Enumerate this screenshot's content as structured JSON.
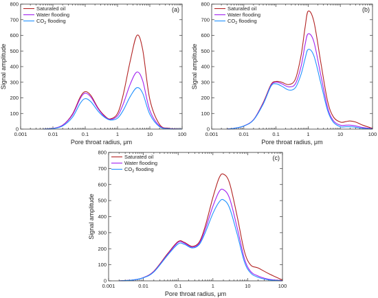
{
  "chart_data": [
    {
      "type": "line",
      "panel_label": "(a)",
      "xlabel": "Pore throat radius, μm",
      "ylabel": "Signal amplitude",
      "xscale": "log",
      "xlim": [
        0.001,
        100
      ],
      "ylim": [
        0,
        800
      ],
      "x_ticks": [
        "0.001",
        "0.01",
        "0.1",
        "1",
        "10",
        "100"
      ],
      "y_ticks": [
        "0",
        "100",
        "200",
        "300",
        "400",
        "500",
        "600",
        "700",
        "800"
      ],
      "legend_position": "top-left",
      "series": [
        {
          "name": "Saturated oil",
          "color": "#b22222",
          "x": [
            0.005,
            0.01,
            0.02,
            0.04,
            0.07,
            0.1,
            0.15,
            0.25,
            0.4,
            0.6,
            1,
            1.5,
            2.5,
            4,
            6,
            10,
            20,
            40,
            100
          ],
          "y": [
            0,
            4,
            25,
            95,
            205,
            240,
            215,
            135,
            85,
            65,
            100,
            220,
            440,
            600,
            510,
            190,
            30,
            5,
            0
          ]
        },
        {
          "name": "Water flooding",
          "color": "#a020f0",
          "x": [
            0.005,
            0.01,
            0.02,
            0.04,
            0.07,
            0.1,
            0.15,
            0.25,
            0.4,
            0.6,
            1,
            1.5,
            2.5,
            4,
            6,
            10,
            20,
            40,
            100
          ],
          "y": [
            0,
            4,
            25,
            90,
            195,
            230,
            205,
            130,
            80,
            62,
            85,
            160,
            290,
            365,
            310,
            120,
            20,
            3,
            0
          ]
        },
        {
          "name": "CO2 flooding",
          "color": "#1e90ff",
          "x": [
            0.005,
            0.01,
            0.02,
            0.04,
            0.07,
            0.1,
            0.15,
            0.25,
            0.4,
            0.6,
            1,
            1.5,
            2.5,
            4,
            6,
            10,
            20,
            40,
            100
          ],
          "y": [
            0,
            3,
            20,
            75,
            165,
            195,
            175,
            115,
            75,
            58,
            70,
            120,
            210,
            265,
            230,
            95,
            15,
            2,
            0
          ]
        }
      ]
    },
    {
      "type": "line",
      "panel_label": "(b)",
      "xlabel": "Pore throat radius, μm",
      "ylabel": "Signal amplitude",
      "xscale": "log",
      "xlim": [
        0.001,
        100
      ],
      "ylim": [
        0,
        800
      ],
      "x_ticks": [
        "0.001",
        "0.01",
        "0.1",
        "1",
        "10",
        "100"
      ],
      "y_ticks": [
        "0",
        "100",
        "200",
        "300",
        "400",
        "500",
        "600",
        "700",
        "800"
      ],
      "legend_position": "top-left",
      "series": [
        {
          "name": "Saturated oil",
          "color": "#b22222",
          "x": [
            0.003,
            0.005,
            0.01,
            0.02,
            0.04,
            0.07,
            0.1,
            0.15,
            0.25,
            0.4,
            0.6,
            0.8,
            1,
            1.5,
            2.5,
            4,
            6,
            10,
            15,
            20,
            30,
            50,
            100
          ],
          "y": [
            0,
            5,
            20,
            60,
            170,
            285,
            305,
            300,
            285,
            320,
            470,
            650,
            755,
            690,
            420,
            180,
            80,
            45,
            48,
            52,
            45,
            25,
            5
          ]
        },
        {
          "name": "Water flooding",
          "color": "#a020f0",
          "x": [
            0.003,
            0.005,
            0.01,
            0.02,
            0.04,
            0.07,
            0.1,
            0.15,
            0.25,
            0.4,
            0.6,
            0.8,
            1,
            1.5,
            2.5,
            4,
            6,
            10,
            15,
            20,
            30,
            50,
            100
          ],
          "y": [
            0,
            5,
            20,
            60,
            165,
            280,
            300,
            290,
            270,
            290,
            400,
            540,
            610,
            560,
            340,
            140,
            55,
            25,
            25,
            25,
            20,
            10,
            2
          ]
        },
        {
          "name": "CO2 flooding",
          "color": "#1e90ff",
          "x": [
            0.003,
            0.005,
            0.01,
            0.02,
            0.04,
            0.07,
            0.1,
            0.15,
            0.25,
            0.4,
            0.6,
            0.8,
            1,
            1.5,
            2.5,
            4,
            6,
            10,
            15,
            20,
            30,
            50,
            100
          ],
          "y": [
            0,
            5,
            20,
            58,
            160,
            275,
            290,
            275,
            250,
            265,
            350,
            450,
            510,
            470,
            290,
            120,
            45,
            15,
            15,
            15,
            12,
            5,
            1
          ]
        }
      ]
    },
    {
      "type": "line",
      "panel_label": "(c)",
      "xlabel": "Pore throat radius, μm",
      "ylabel": "Signal amplitude",
      "xscale": "log",
      "xlim": [
        0.001,
        100
      ],
      "ylim": [
        0,
        800
      ],
      "x_ticks": [
        "0.001",
        "0.01",
        "0.1",
        "1",
        "10",
        "100"
      ],
      "y_ticks": [
        "0",
        "100",
        "200",
        "300",
        "400",
        "500",
        "600",
        "700",
        "800"
      ],
      "legend_position": "top-left",
      "series": [
        {
          "name": "Saturated oil",
          "color": "#b22222",
          "x": [
            0.002,
            0.005,
            0.01,
            0.02,
            0.05,
            0.1,
            0.15,
            0.25,
            0.4,
            0.6,
            1,
            1.5,
            2,
            3,
            5,
            8,
            12,
            20,
            40,
            100
          ],
          "y": [
            0,
            5,
            20,
            60,
            170,
            245,
            240,
            215,
            240,
            340,
            520,
            640,
            665,
            610,
            400,
            185,
            100,
            80,
            45,
            5
          ]
        },
        {
          "name": "Water flooding",
          "color": "#a020f0",
          "x": [
            0.002,
            0.005,
            0.01,
            0.02,
            0.05,
            0.1,
            0.15,
            0.25,
            0.4,
            0.6,
            1,
            1.5,
            2,
            3,
            5,
            8,
            12,
            20,
            40,
            100
          ],
          "y": [
            0,
            5,
            20,
            58,
            165,
            240,
            235,
            210,
            232,
            320,
            465,
            555,
            568,
            515,
            330,
            140,
            60,
            30,
            10,
            1
          ]
        },
        {
          "name": "CO2 flooding",
          "color": "#1e90ff",
          "x": [
            0.002,
            0.005,
            0.01,
            0.02,
            0.05,
            0.1,
            0.15,
            0.25,
            0.4,
            0.6,
            1,
            1.5,
            2,
            3,
            5,
            8,
            12,
            20,
            40,
            100
          ],
          "y": [
            0,
            5,
            19,
            55,
            160,
            230,
            228,
            205,
            225,
            300,
            420,
            490,
            505,
            455,
            290,
            120,
            50,
            22,
            6,
            0
          ]
        }
      ]
    }
  ]
}
